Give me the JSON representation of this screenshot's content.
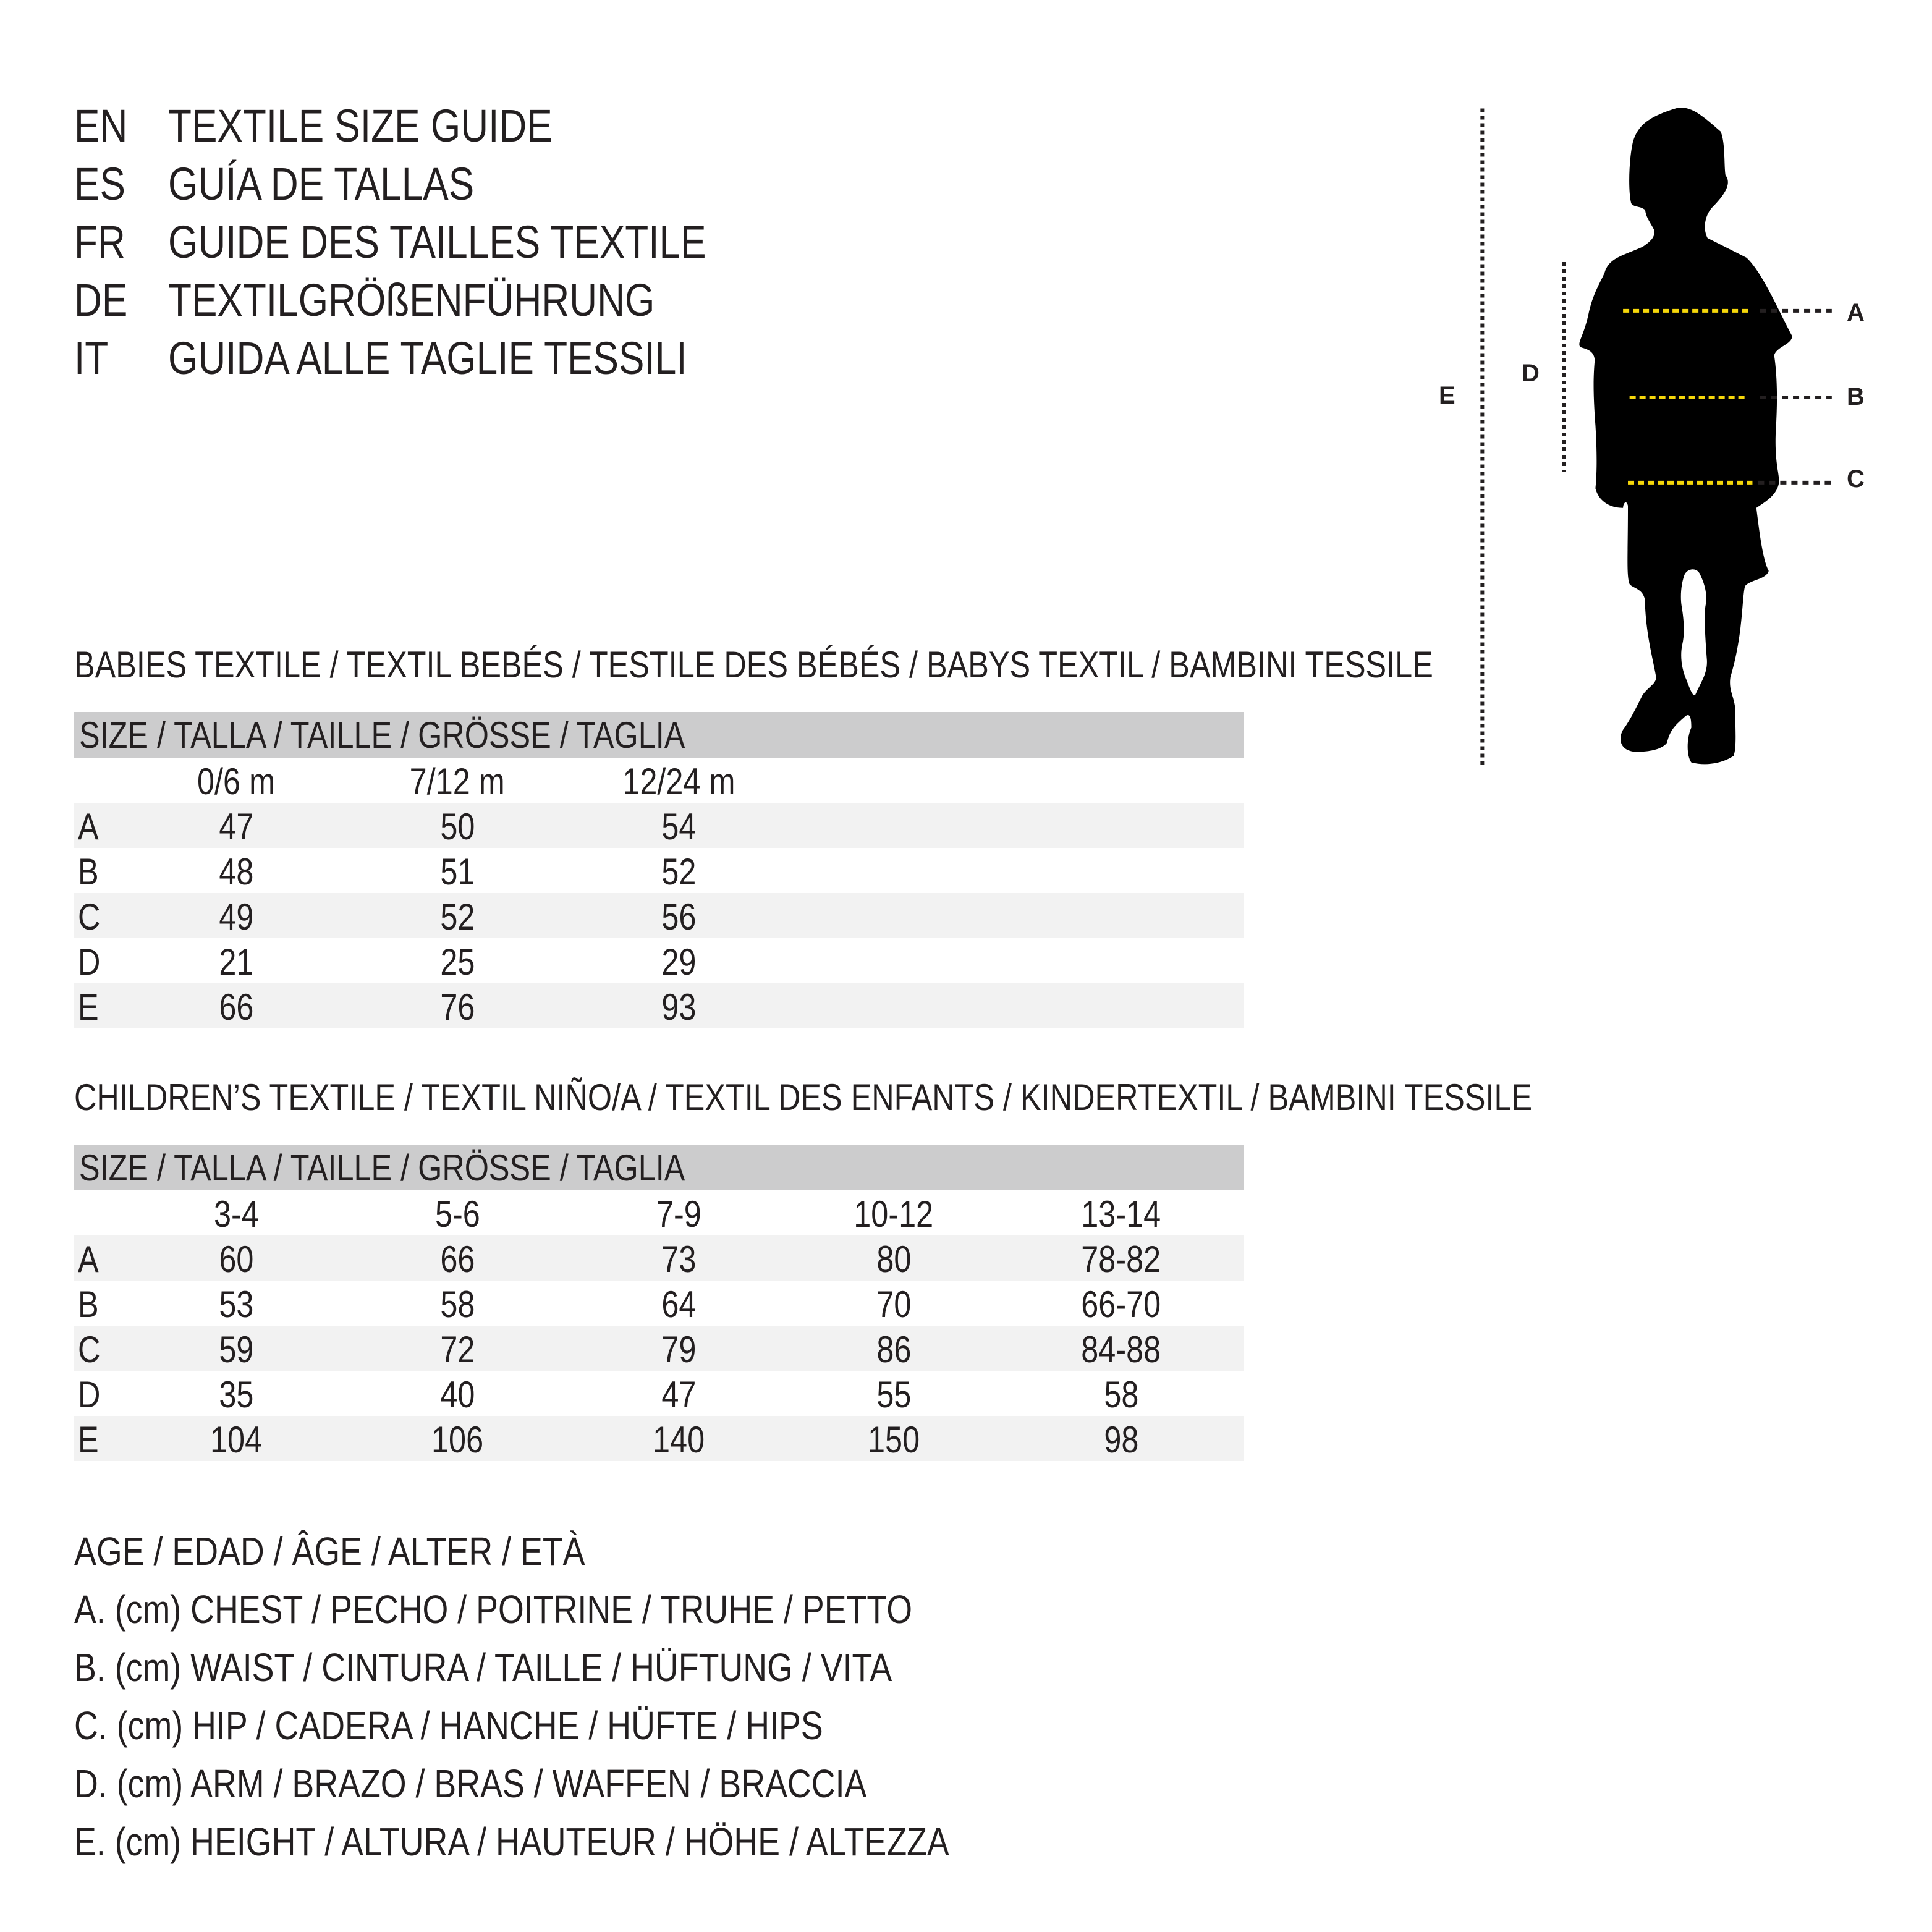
{
  "titles": [
    {
      "code": "EN",
      "text": "TEXTILE SIZE GUIDE"
    },
    {
      "code": "ES",
      "text": "GUÍA DE TALLAS"
    },
    {
      "code": "FR",
      "text": "GUIDE DES TAILLES TEXTILE"
    },
    {
      "code": "DE",
      "text": "TEXTILGRÖßENFÜHRUNG"
    },
    {
      "code": "IT",
      "text": "GUIDA ALLE TAGLIE TESSILI"
    }
  ],
  "figure": {
    "labels": {
      "A": "A",
      "B": "B",
      "C": "C",
      "D": "D",
      "E": "E"
    },
    "marker_color": "#f5d60a"
  },
  "babies": {
    "heading": "BABIES TEXTILE / TEXTIL BEBÉS / TESTILE DES BÉBÉS / BABYS TEXTIL / BAMBINI TESSILE",
    "size_header": "SIZE / TALLA / TAILLE / GRÖSSE / TAGLIA",
    "columns": [
      "0/6 m",
      "7/12 m",
      "12/24 m"
    ],
    "rows": [
      {
        "label": "A",
        "values": [
          "47",
          "50",
          "54"
        ]
      },
      {
        "label": "B",
        "values": [
          "48",
          "51",
          "52"
        ]
      },
      {
        "label": "C",
        "values": [
          "49",
          "52",
          "56"
        ]
      },
      {
        "label": "D",
        "values": [
          "21",
          "25",
          "29"
        ]
      },
      {
        "label": "E",
        "values": [
          "66",
          "76",
          "93"
        ]
      }
    ]
  },
  "children": {
    "heading": "CHILDREN’S TEXTILE / TEXTIL NIÑO/A / TEXTIL DES ENFANTS / KINDERTEXTIL / BAMBINI TESSILE",
    "size_header": "SIZE / TALLA / TAILLE / GRÖSSE / TAGLIA",
    "columns": [
      "3-4",
      "5-6",
      "7-9",
      "10-12",
      "13-14"
    ],
    "rows": [
      {
        "label": "A",
        "values": [
          "60",
          "66",
          "73",
          "80",
          "78-82"
        ]
      },
      {
        "label": "B",
        "values": [
          "53",
          "58",
          "64",
          "70",
          "66-70"
        ]
      },
      {
        "label": "C",
        "values": [
          "59",
          "72",
          "79",
          "86",
          "84-88"
        ]
      },
      {
        "label": "D",
        "values": [
          "35",
          "40",
          "47",
          "55",
          "58"
        ]
      },
      {
        "label": "E",
        "values": [
          "104",
          "106",
          "140",
          "150",
          "98"
        ]
      }
    ]
  },
  "legend": [
    "AGE / EDAD / ÂGE / ALTER / ETÀ",
    "A. (cm) CHEST / PECHO / POITRINE / TRUHE / PETTO",
    "B. (cm) WAIST / CINTURA / TAILLE / HÜFTUNG / VITA",
    "C. (cm) HIP / CADERA / HANCHE / HÜFTE / HIPS",
    "D. (cm) ARM / BRAZO / BRAS / WAFFEN / BRACCIA",
    "E. (cm) HEIGHT / ALTURA / HAUTEUR / HÖHE / ALTEZZA"
  ]
}
